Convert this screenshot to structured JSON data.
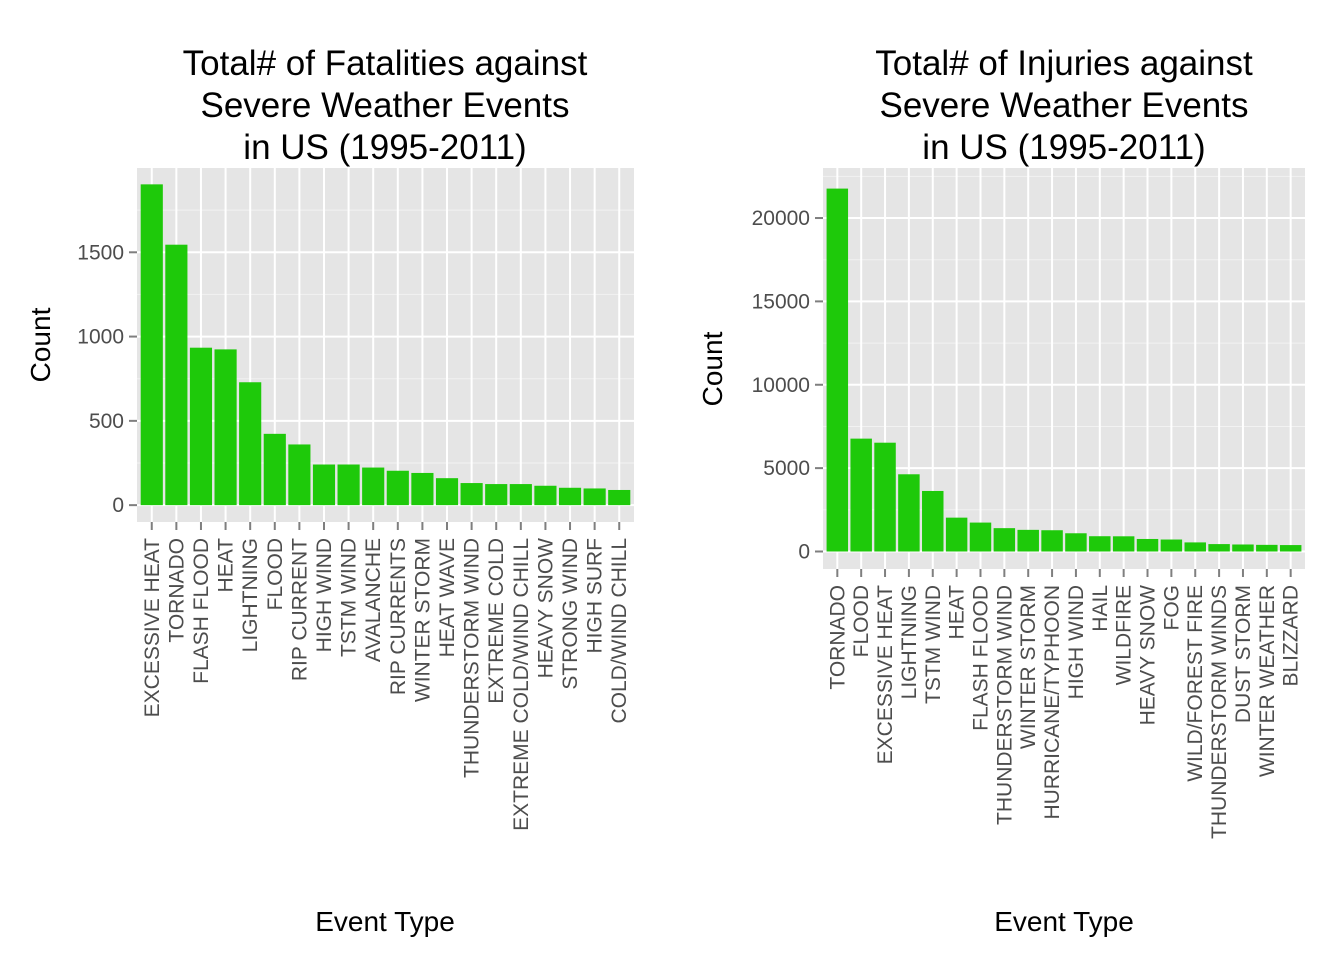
{
  "chart_data": [
    {
      "type": "bar",
      "title_lines": [
        "Total# of Fatalities against",
        "Severe Weather Events",
        "in US (1995-2011)"
      ],
      "xlabel": "Event Type",
      "ylabel": "Count",
      "ylim": [
        -100,
        2000
      ],
      "yticks": [
        0,
        500,
        1000,
        1500
      ],
      "grid": true,
      "bar_color": "#1ec90a",
      "categories": [
        "EXCESSIVE HEAT",
        "TORNADO",
        "FLASH FLOOD",
        "HEAT",
        "LIGHTNING",
        "FLOOD",
        "RIP CURRENT",
        "HIGH WIND",
        "TSTM WIND",
        "AVALANCHE",
        "RIP CURRENTS",
        "WINTER STORM",
        "HEAT WAVE",
        "THUNDERSTORM WIND",
        "EXTREME COLD",
        "EXTREME COLD/WIND CHILL",
        "HEAVY SNOW",
        "STRONG WIND",
        "HIGH SURF",
        "COLD/WIND CHILL"
      ],
      "values": [
        1903,
        1545,
        934,
        924,
        729,
        423,
        360,
        241,
        241,
        223,
        204,
        191,
        160,
        131,
        125,
        125,
        115,
        103,
        99,
        90
      ]
    },
    {
      "type": "bar",
      "title_lines": [
        "Total# of Injuries against",
        "Severe Weather Events",
        "in US (1995-2011)"
      ],
      "xlabel": "Event Type",
      "ylabel": "Count",
      "ylim": [
        -1050,
        23000
      ],
      "yticks": [
        0,
        5000,
        10000,
        15000,
        20000
      ],
      "grid": true,
      "bar_color": "#1ec90a",
      "categories": [
        "TORNADO",
        "FLOOD",
        "EXCESSIVE HEAT",
        "LIGHTNING",
        "TSTM WIND",
        "HEAT",
        "FLASH FLOOD",
        "THUNDERSTORM WIND",
        "WINTER STORM",
        "HURRICANE/TYPHOON",
        "HIGH WIND",
        "HAIL",
        "WILDFIRE",
        "HEAVY SNOW",
        "FOG",
        "WILD/FOREST FIRE",
        "THUNDERSTORM WINDS",
        "DUST STORM",
        "WINTER WEATHER",
        "BLIZZARD"
      ],
      "values": [
        21765,
        6769,
        6525,
        4631,
        3630,
        2030,
        1734,
        1400,
        1298,
        1275,
        1093,
        916,
        911,
        751,
        718,
        545,
        444,
        420,
        398,
        385
      ]
    }
  ]
}
